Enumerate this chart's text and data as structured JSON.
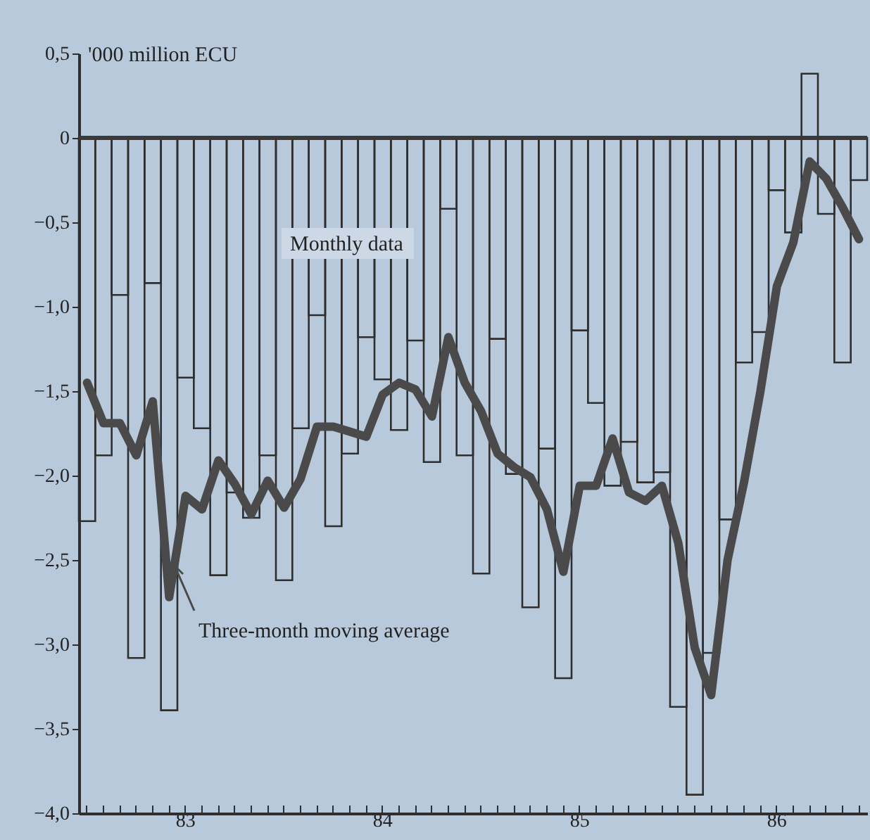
{
  "chart_data": {
    "type": "bar",
    "ylabel": "'000 million ECU",
    "categories": [
      null,
      null,
      null,
      null,
      null,
      null,
      "83",
      null,
      null,
      null,
      null,
      null,
      null,
      null,
      null,
      null,
      null,
      null,
      "84",
      null,
      null,
      null,
      null,
      null,
      null,
      null,
      null,
      null,
      null,
      null,
      "85",
      null,
      null,
      null,
      null,
      null,
      null,
      null,
      null,
      null,
      null,
      null,
      "86",
      null,
      null,
      null,
      null,
      null
    ],
    "series": [
      {
        "name": "Monthly data",
        "color": "#2e2e2e",
        "values": [
          -2.27,
          -1.88,
          -0.93,
          -3.08,
          -0.86,
          -3.39,
          -1.42,
          -1.72,
          -2.59,
          -2.1,
          -2.25,
          -1.88,
          -2.62,
          -1.72,
          -1.05,
          -2.3,
          -1.87,
          -1.18,
          -1.43,
          -1.73,
          -1.2,
          -1.92,
          -0.42,
          -1.88,
          -2.58,
          -1.19,
          -1.99,
          -2.78,
          -1.84,
          -3.2,
          -1.14,
          -1.57,
          -2.06,
          -1.8,
          -2.04,
          -1.98,
          -3.37,
          -3.89,
          -3.05,
          -2.26,
          -1.33,
          -1.15,
          -0.31,
          -0.56,
          0.38,
          -0.45,
          -1.33,
          -0.25
        ]
      },
      {
        "name": "Three-month moving average",
        "type": "line",
        "color": "#4a4a4a",
        "values": [
          -1.45,
          -1.69,
          -1.69,
          -1.88,
          -1.56,
          -2.72,
          -2.12,
          -2.2,
          -1.91,
          -2.05,
          -2.23,
          -2.03,
          -2.19,
          -2.02,
          -1.71,
          -1.71,
          -1.74,
          -1.77,
          -1.52,
          -1.45,
          -1.49,
          -1.65,
          -1.18,
          -1.45,
          -1.62,
          -1.87,
          -1.95,
          -2.01,
          -2.2,
          -2.57,
          -2.06,
          -2.06,
          -1.78,
          -2.1,
          -2.15,
          -2.06,
          -2.4,
          -3.02,
          -3.3,
          -2.5,
          -2.04,
          -1.5,
          -0.88,
          -0.62,
          -0.14,
          -0.24,
          -0.41,
          -0.6
        ]
      }
    ],
    "ylim": [
      -4.0,
      0.5
    ],
    "yticks": [
      {
        "value": 0.5,
        "label": "0,5"
      },
      0,
      {
        "value": -0.5,
        "label": "−0,5"
      },
      {
        "value": -1.0,
        "label": "−1,0"
      },
      {
        "value": -1.5,
        "label": "−1,5"
      },
      {
        "value": -2.0,
        "label": "−2,0"
      },
      {
        "value": -2.5,
        "label": "−2,5"
      },
      {
        "value": -3.0,
        "label": "−3,0"
      },
      {
        "value": -3.5,
        "label": "−3,5"
      },
      {
        "value": -4.0,
        "label": "−4,0"
      }
    ],
    "ref_lines": [
      {
        "axis": "y",
        "value": 0,
        "color": "#3a3a3a"
      }
    ],
    "grid": false
  }
}
